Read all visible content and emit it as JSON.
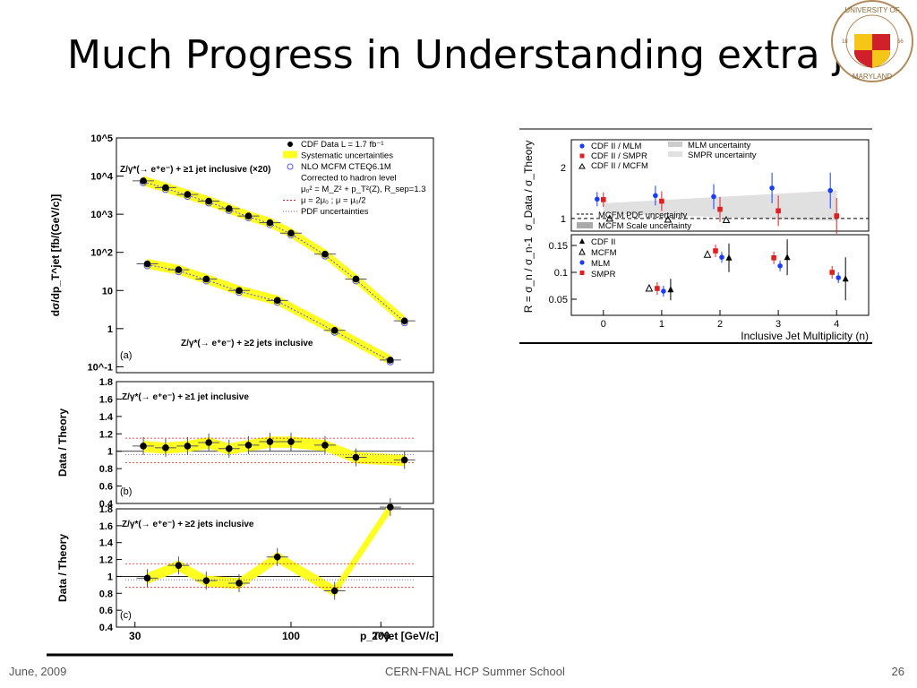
{
  "slide": {
    "title": "Much Progress in Understanding extra jets",
    "seal_text": [
      "UNIVERSITY OF",
      "MARYLAND",
      "18",
      "56"
    ],
    "footer_left": "June, 2009",
    "footer_center": "CERN-FNAL HCP Summer School",
    "footer_right": "26"
  },
  "colors": {
    "yellow": "#ffff22",
    "data": "#000000",
    "nlo": "#5555ff",
    "red": "#e02020",
    "blue": "#1a3cff",
    "grey": "#cccccc"
  },
  "chart_data": [
    {
      "type": "scatter",
      "panel": "a",
      "log_x": true,
      "log_y": true,
      "xlim": [
        26,
        300
      ],
      "ylim": [
        0.07,
        100000
      ],
      "y_ticks": [
        "10^5",
        "10^4",
        "10^3",
        "10^2",
        "10",
        "1",
        "10^-1"
      ],
      "ylabel": "dσ/dp_T^jet [fb/(GeV/c)]",
      "panel_label": "(a)",
      "label_1jet": "Z/γ*(→ e⁺e⁻) + ≥1 jet inclusive (×20)",
      "label_2jet": "Z/γ*(→ e⁺e⁻) + ≥2 jets inclusive",
      "legend": [
        "CDF Data  L = 1.7 fb⁻¹",
        "Systematic uncertainties",
        "NLO MCFM CTEQ6.1M",
        "Corrected to hadron level",
        "μ₀² = M_Z² + p_T²(Z), R_sep=1.3",
        "μ = 2μ₀ ; μ = μ₀/2",
        "PDF uncertainties"
      ],
      "series": [
        {
          "name": "≥1 jet",
          "x": [
            32,
            38,
            45,
            53,
            62,
            72,
            85,
            100,
            130,
            165,
            240
          ],
          "y": [
            7500,
            5000,
            3300,
            2200,
            1400,
            900,
            600,
            320,
            90,
            20,
            1.6
          ]
        },
        {
          "name": "≥2 jets",
          "x": [
            33,
            42,
            52,
            67,
            90,
            140,
            215
          ],
          "y": [
            50,
            35,
            20,
            10,
            5.5,
            0.9,
            0.15
          ]
        }
      ]
    },
    {
      "type": "scatter",
      "panel": "b",
      "ylabel": "Data / Theory",
      "ylim": [
        0.4,
        1.8
      ],
      "y_ticks": [
        "1.8",
        "1.6",
        "1.4",
        "1.2",
        "1",
        "0.8",
        "0.6",
        "0.4"
      ],
      "label": "Z/γ*(→ e⁺e⁻) + ≥1 jet inclusive",
      "panel_label": "(b)",
      "x": [
        32,
        38,
        45,
        53,
        62,
        72,
        85,
        100,
        130,
        165,
        240
      ],
      "y": [
        1.06,
        1.04,
        1.06,
        1.1,
        1.03,
        1.07,
        1.11,
        1.11,
        1.07,
        0.93,
        0.9
      ]
    },
    {
      "type": "scatter",
      "panel": "c",
      "ylabel": "Data / Theory",
      "ylim": [
        0.4,
        1.8
      ],
      "y_ticks": [
        "1.8",
        "1.6",
        "1.4",
        "1.2",
        "1",
        "0.8",
        "0.6",
        "0.4"
      ],
      "label": "Z/γ*(→ e⁺e⁻) + ≥2 jets inclusive",
      "panel_label": "(c)",
      "x_ticks": [
        "30",
        "100",
        "200"
      ],
      "xlabel": "p_T^jet  [GeV/c]",
      "x": [
        33,
        42,
        52,
        67,
        90,
        140,
        215
      ],
      "y": [
        0.98,
        1.13,
        0.95,
        0.92,
        1.23,
        0.83,
        1.82
      ]
    },
    {
      "type": "scatter",
      "panel": "ratio_top",
      "ylabel": "σ_Data / σ_Theory",
      "y_ticks": [
        "2",
        "1"
      ],
      "legend": [
        "CDF II / MLM",
        "CDF II / SMPR",
        "CDF II / MCFM",
        "MLM uncertainty",
        "SMPR uncertainty",
        "MCFM PDF uncertainty",
        "MCFM Scale uncertainty"
      ],
      "series": [
        {
          "name": "CDF II / MLM",
          "x": [
            0,
            1,
            2,
            3,
            4
          ],
          "y": [
            1.38,
            1.45,
            1.43,
            1.6,
            1.55
          ]
        },
        {
          "name": "CDF II / SMPR",
          "x": [
            0,
            1,
            2,
            3,
            4
          ],
          "y": [
            1.37,
            1.34,
            1.18,
            1.15,
            1.05
          ]
        },
        {
          "name": "CDF II / MCFM",
          "x": [
            0,
            1,
            2
          ],
          "y": [
            1.0,
            0.98,
            0.97
          ]
        }
      ]
    },
    {
      "type": "scatter",
      "panel": "ratio_bottom",
      "ylabel": "R = σ_n / σ_n-1",
      "y_ticks": [
        "0.15",
        "0.1",
        "0.05"
      ],
      "x_ticks": [
        "0",
        "1",
        "2",
        "3",
        "4"
      ],
      "xlabel": "Inclusive Jet Multiplicity (n)",
      "legend": [
        "CDF II",
        "MCFM",
        "MLM",
        "SMPR"
      ],
      "series": [
        {
          "name": "CDF II",
          "x": [
            1,
            2,
            3,
            4
          ],
          "y": [
            0.068,
            0.127,
            0.128,
            0.088
          ]
        },
        {
          "name": "MCFM",
          "x": [
            1,
            2
          ],
          "y": [
            0.07,
            0.133
          ]
        },
        {
          "name": "MLM",
          "x": [
            1,
            2,
            3,
            4
          ],
          "y": [
            0.065,
            0.128,
            0.112,
            0.09
          ]
        },
        {
          "name": "SMPR",
          "x": [
            1,
            2,
            3,
            4
          ],
          "y": [
            0.07,
            0.14,
            0.127,
            0.1
          ]
        }
      ]
    }
  ]
}
